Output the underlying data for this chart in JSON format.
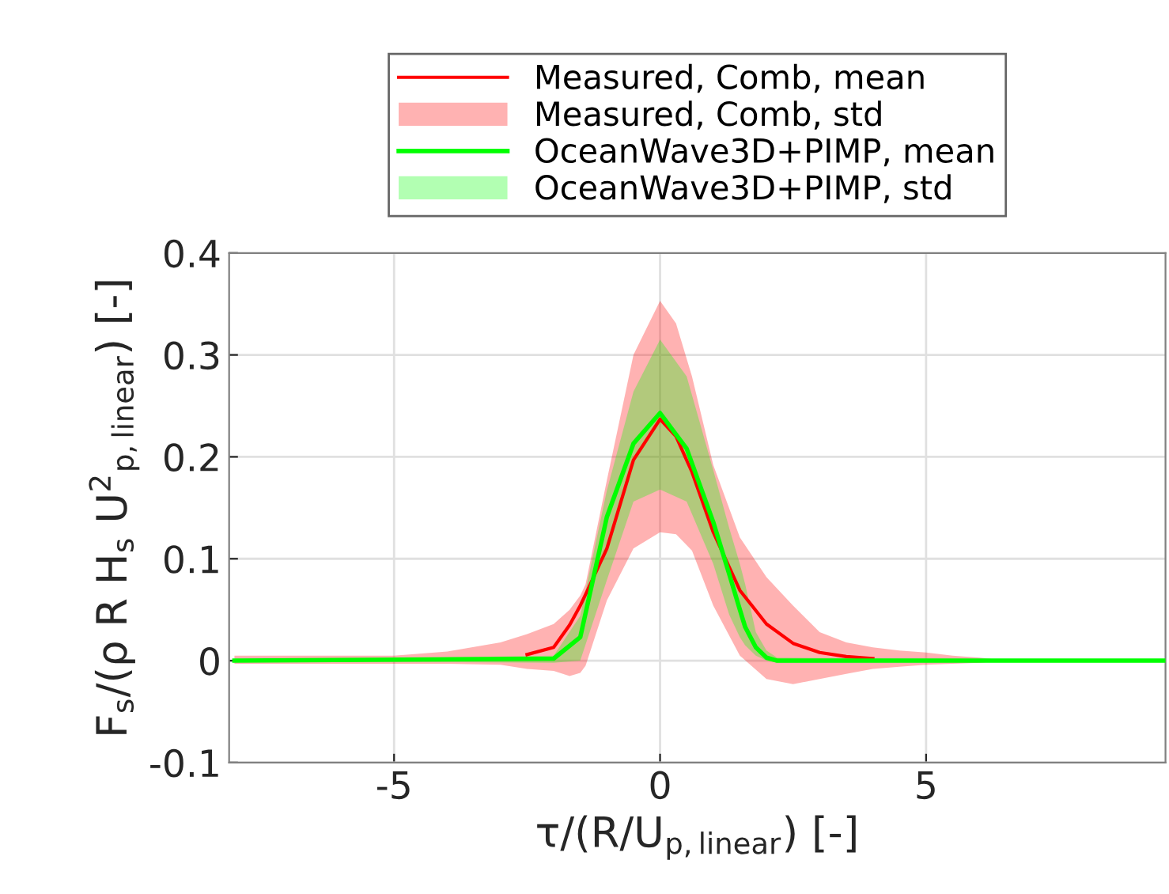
{
  "chart_data": {
    "type": "line",
    "xlabel": "τ/(R/U$_{p,linear}$) [-]",
    "ylabel": "F$_{s}$/(ρ R H$_{s}$ U$^{2}$$_{p,linear}$) [-]",
    "xlim": [
      -8.1,
      9.5
    ],
    "xticks": [
      -5,
      0,
      5
    ],
    "ylim": [
      -0.1,
      0.4
    ],
    "yticks": [
      -0.1,
      0,
      0.1,
      0.2,
      0.3,
      0.4
    ],
    "grid": true,
    "legend": "top",
    "annotations": [
      "Measured, Comb, std",
      "OceanWave3D+PIMP, std"
    ],
    "series": [
      {
        "name": "Measured, Comb, mean",
        "color": "#ff0000",
        "x": [
          -8,
          -5,
          -4,
          -3,
          -2.5,
          -2,
          -1.7,
          -1.5,
          -1.4,
          -1,
          -0.5,
          0,
          0.3,
          0.6,
          1,
          1.5,
          2,
          2.5,
          3,
          3.5,
          4,
          4.5,
          5,
          5.5,
          6,
          6.5
        ],
        "values": [
          null,
          null,
          null,
          null,
          0.006,
          0.013,
          0.035,
          0.054,
          0.065,
          0.11,
          0.197,
          0.237,
          0.22,
          0.185,
          0.126,
          0.069,
          0.036,
          0.017,
          0.008,
          0.004,
          0.002,
          null,
          null,
          null,
          null,
          null
        ],
        "upper": [
          0.005,
          0.005,
          0.009,
          0.018,
          0.026,
          0.036,
          0.05,
          0.064,
          0.075,
          0.177,
          0.3,
          0.353,
          0.331,
          0.279,
          0.192,
          0.121,
          0.082,
          0.054,
          0.028,
          0.018,
          0.013,
          0.01,
          0.008,
          0.005,
          0.003,
          0
        ],
        "lower": [
          -0.003,
          -0.003,
          -0.003,
          -0.004,
          -0.008,
          -0.01,
          -0.015,
          -0.012,
          -0.005,
          0.059,
          0.11,
          0.126,
          0.124,
          0.108,
          0.054,
          0.005,
          -0.018,
          -0.023,
          -0.018,
          -0.013,
          -0.008,
          -0.006,
          -0.004,
          -0.003,
          -0.002,
          0
        ]
      },
      {
        "name": "OceanWave3D+PIMP, mean",
        "color": "#00ff00",
        "x": [
          -8,
          -2,
          -1.5,
          -1,
          -0.5,
          0,
          0.5,
          1,
          1.3,
          1.5,
          1.6,
          1.8,
          2,
          2.2,
          9.5
        ],
        "values": [
          0,
          0.002,
          0.023,
          0.141,
          0.213,
          0.243,
          0.208,
          0.136,
          0.085,
          0.05,
          0.033,
          0.013,
          0.003,
          0,
          0
        ],
        "upper": [
          0,
          0.005,
          0.044,
          0.167,
          0.264,
          0.315,
          0.279,
          0.187,
          0.13,
          0.095,
          0.075,
          0.028,
          0.01,
          0.003,
          0
        ],
        "lower": [
          0,
          -0.002,
          0,
          0.079,
          0.156,
          0.168,
          0.156,
          0.095,
          0.045,
          0.023,
          0.015,
          0.005,
          0,
          -0.002,
          0
        ]
      }
    ]
  }
}
